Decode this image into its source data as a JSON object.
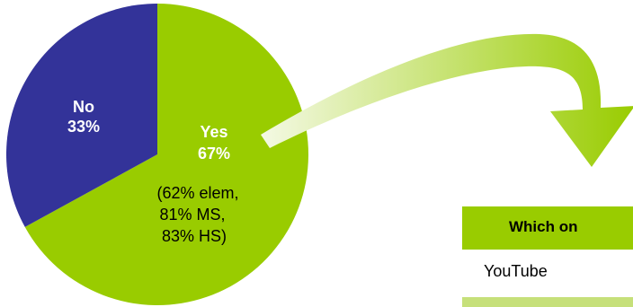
{
  "colors": {
    "yes": "#99cc00",
    "no": "#333399",
    "arrow_light": "#f4f9e4",
    "arrow_dark": "#99cc00",
    "table_header": "#99cc00",
    "table_row_band": "#c6e07a"
  },
  "chart_data": {
    "type": "pie",
    "slices": [
      {
        "name": "Yes",
        "value": 67,
        "label_lines": [
          "Yes",
          "67%",
          "(62% elem,",
          "81% MS,",
          "83% HS)"
        ]
      },
      {
        "name": "No",
        "value": 33,
        "label_lines": [
          "No",
          "33%"
        ]
      }
    ]
  },
  "table": {
    "header": "Which on",
    "row_1": "YouTube"
  }
}
